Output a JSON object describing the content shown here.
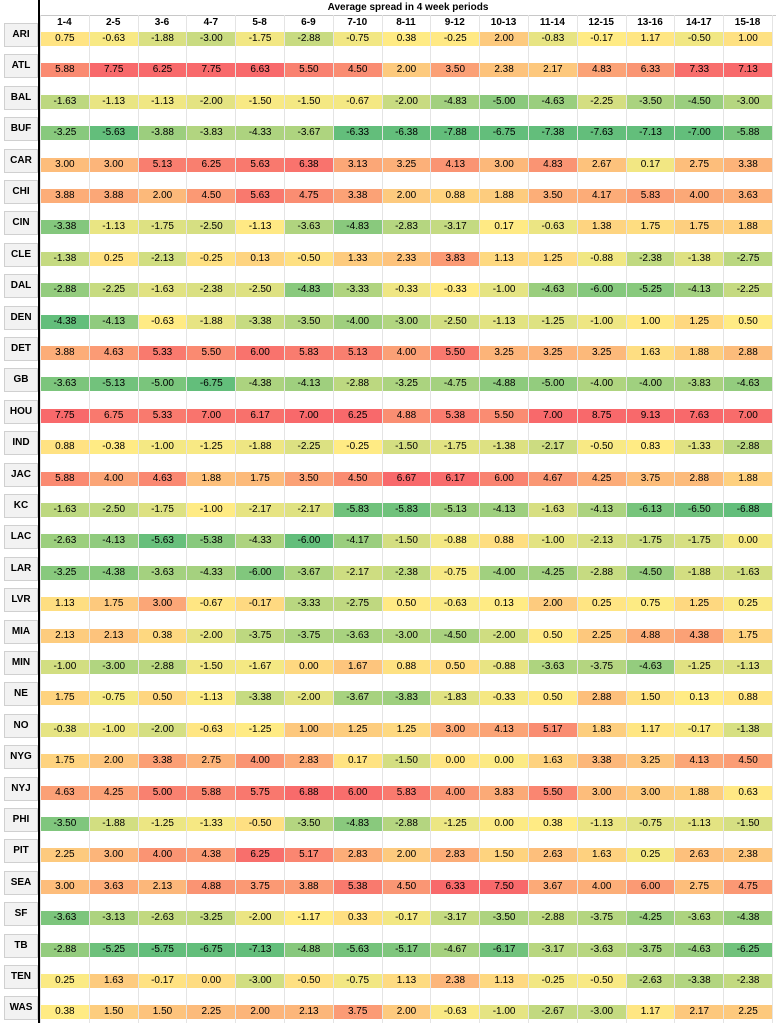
{
  "title": "Average spread in 4 week periods",
  "columns": [
    "1-4",
    "2-5",
    "3-6",
    "4-7",
    "5-8",
    "6-9",
    "7-10",
    "8-11",
    "9-12",
    "10-13",
    "11-14",
    "12-15",
    "13-16",
    "14-17",
    "15-18"
  ],
  "colors": {
    "green": "#63be7b",
    "yellow": "#ffeb84",
    "red": "#f8696b"
  },
  "rows": [
    {
      "team": "ARI",
      "values": [
        "0.75",
        "-0.63",
        "-1.88",
        "-3.00",
        "-1.75",
        "-2.88",
        "-0.75",
        "0.38",
        "-0.25",
        "2.00",
        "-0.83",
        "-0.17",
        "1.17",
        "-0.50",
        "1.00"
      ]
    },
    {
      "team": "ATL",
      "values": [
        "5.88",
        "7.75",
        "6.25",
        "7.75",
        "6.63",
        "5.50",
        "4.50",
        "2.00",
        "3.50",
        "2.38",
        "2.17",
        "4.83",
        "6.33",
        "7.33",
        "7.13"
      ]
    },
    {
      "team": "BAL",
      "values": [
        "-1.63",
        "-1.13",
        "-1.13",
        "-2.00",
        "-1.50",
        "-1.50",
        "-0.67",
        "-2.00",
        "-4.83",
        "-5.00",
        "-4.63",
        "-2.25",
        "-3.50",
        "-4.50",
        "-3.00"
      ]
    },
    {
      "team": "BUF",
      "values": [
        "-3.25",
        "-5.63",
        "-3.88",
        "-3.83",
        "-4.33",
        "-3.67",
        "-6.33",
        "-6.38",
        "-7.88",
        "-6.75",
        "-7.38",
        "-7.63",
        "-7.13",
        "-7.00",
        "-5.88"
      ]
    },
    {
      "team": "CAR",
      "values": [
        "3.00",
        "3.00",
        "5.13",
        "6.25",
        "5.63",
        "6.38",
        "3.13",
        "3.25",
        "4.13",
        "3.00",
        "4.83",
        "2.67",
        "0.17",
        "2.75",
        "3.38"
      ]
    },
    {
      "team": "CHI",
      "values": [
        "3.88",
        "3.88",
        "2.00",
        "4.50",
        "5.63",
        "4.75",
        "3.38",
        "2.00",
        "0.88",
        "1.88",
        "3.50",
        "4.17",
        "5.83",
        "4.00",
        "3.63"
      ]
    },
    {
      "team": "CIN",
      "values": [
        "-3.38",
        "-1.13",
        "-1.75",
        "-2.50",
        "-1.13",
        "-3.63",
        "-4.83",
        "-2.83",
        "-3.17",
        "0.17",
        "-0.63",
        "1.38",
        "1.75",
        "1.75",
        "1.88"
      ]
    },
    {
      "team": "CLE",
      "values": [
        "-1.38",
        "0.25",
        "-2.13",
        "-0.25",
        "0.13",
        "-0.50",
        "1.33",
        "2.33",
        "3.83",
        "1.13",
        "1.25",
        "-0.88",
        "-2.38",
        "-1.38",
        "-2.75"
      ]
    },
    {
      "team": "DAL",
      "values": [
        "-2.88",
        "-2.25",
        "-1.63",
        "-2.38",
        "-2.50",
        "-4.83",
        "-3.33",
        "-0.33",
        "-0.33",
        "-1.00",
        "-4.63",
        "-6.00",
        "-5.25",
        "-4.13",
        "-2.25"
      ]
    },
    {
      "team": "DEN",
      "values": [
        "-4.38",
        "-4.13",
        "-0.63",
        "-1.88",
        "-3.38",
        "-3.50",
        "-4.00",
        "-3.00",
        "-2.50",
        "-1.13",
        "-1.25",
        "-1.00",
        "1.00",
        "1.25",
        "0.50"
      ]
    },
    {
      "team": "DET",
      "values": [
        "3.88",
        "4.63",
        "5.33",
        "5.50",
        "6.00",
        "5.83",
        "5.13",
        "4.00",
        "5.50",
        "3.25",
        "3.25",
        "3.25",
        "1.63",
        "1.88",
        "2.88"
      ]
    },
    {
      "team": "GB",
      "values": [
        "-3.63",
        "-5.13",
        "-5.00",
        "-6.75",
        "-4.38",
        "-4.13",
        "-2.88",
        "-3.25",
        "-4.75",
        "-4.88",
        "-5.00",
        "-4.00",
        "-4.00",
        "-3.83",
        "-4.63"
      ]
    },
    {
      "team": "HOU",
      "values": [
        "7.75",
        "6.75",
        "5.33",
        "7.00",
        "6.17",
        "7.00",
        "6.25",
        "4.88",
        "5.38",
        "5.50",
        "7.00",
        "8.75",
        "9.13",
        "7.63",
        "7.00"
      ]
    },
    {
      "team": "IND",
      "values": [
        "0.88",
        "-0.38",
        "-1.00",
        "-1.25",
        "-1.88",
        "-2.25",
        "-0.25",
        "-1.50",
        "-1.75",
        "-1.38",
        "-2.17",
        "-0.50",
        "0.83",
        "-1.33",
        "-2.88"
      ]
    },
    {
      "team": "JAC",
      "values": [
        "5.88",
        "4.00",
        "4.63",
        "1.88",
        "1.75",
        "3.50",
        "4.50",
        "6.67",
        "6.17",
        "6.00",
        "4.67",
        "4.25",
        "3.75",
        "2.88",
        "1.88"
      ]
    },
    {
      "team": "KC",
      "values": [
        "-1.63",
        "-2.50",
        "-1.75",
        "-1.00",
        "-2.17",
        "-2.17",
        "-5.83",
        "-5.83",
        "-5.13",
        "-4.13",
        "-1.63",
        "-4.13",
        "-6.13",
        "-6.50",
        "-6.88"
      ]
    },
    {
      "team": "LAC",
      "values": [
        "-2.63",
        "-4.13",
        "-5.63",
        "-5.38",
        "-4.33",
        "-6.00",
        "-4.17",
        "-1.50",
        "-0.88",
        "0.88",
        "-1.00",
        "-2.13",
        "-1.75",
        "-1.75",
        "0.00"
      ]
    },
    {
      "team": "LAR",
      "values": [
        "-3.25",
        "-4.38",
        "-3.63",
        "-4.33",
        "-6.00",
        "-3.67",
        "-2.17",
        "-2.38",
        "-0.75",
        "-4.00",
        "-4.25",
        "-2.88",
        "-4.50",
        "-1.88",
        "-1.63"
      ]
    },
    {
      "team": "LVR",
      "values": [
        "1.13",
        "1.75",
        "3.00",
        "-0.67",
        "-0.17",
        "-3.33",
        "-2.75",
        "0.50",
        "-0.63",
        "0.13",
        "2.00",
        "0.25",
        "0.75",
        "1.25",
        "0.25"
      ]
    },
    {
      "team": "MIA",
      "values": [
        "2.13",
        "2.13",
        "0.38",
        "-2.00",
        "-3.75",
        "-3.75",
        "-3.63",
        "-3.00",
        "-4.50",
        "-2.00",
        "0.50",
        "2.25",
        "4.88",
        "4.38",
        "1.75"
      ]
    },
    {
      "team": "MIN",
      "values": [
        "-1.00",
        "-3.00",
        "-2.88",
        "-1.50",
        "-1.67",
        "0.00",
        "1.67",
        "0.88",
        "0.50",
        "-0.88",
        "-3.63",
        "-3.75",
        "-4.63",
        "-1.25",
        "-1.13"
      ]
    },
    {
      "team": "NE",
      "values": [
        "1.75",
        "-0.75",
        "0.50",
        "-1.13",
        "-3.38",
        "-2.00",
        "-3.67",
        "-3.83",
        "-1.83",
        "-0.33",
        "0.50",
        "2.88",
        "1.50",
        "0.13",
        "0.88"
      ]
    },
    {
      "team": "NO",
      "values": [
        "-0.38",
        "-1.00",
        "-2.00",
        "-0.63",
        "-1.25",
        "1.00",
        "1.25",
        "1.25",
        "3.00",
        "4.13",
        "5.17",
        "1.83",
        "1.17",
        "-0.17",
        "-1.38"
      ]
    },
    {
      "team": "NYG",
      "values": [
        "1.75",
        "2.00",
        "3.38",
        "2.75",
        "4.00",
        "2.83",
        "0.17",
        "-1.50",
        "0.00",
        "0.00",
        "1.63",
        "3.38",
        "3.25",
        "4.13",
        "4.50"
      ]
    },
    {
      "team": "NYJ",
      "values": [
        "4.63",
        "4.25",
        "5.00",
        "5.88",
        "5.75",
        "6.88",
        "6.00",
        "5.83",
        "4.00",
        "3.83",
        "5.50",
        "3.00",
        "3.00",
        "1.88",
        "0.63"
      ]
    },
    {
      "team": "PHI",
      "values": [
        "-3.50",
        "-1.88",
        "-1.25",
        "-1.33",
        "-0.50",
        "-3.50",
        "-4.83",
        "-2.88",
        "-1.25",
        "0.00",
        "0.38",
        "-1.13",
        "-0.75",
        "-1.13",
        "-1.50"
      ]
    },
    {
      "team": "PIT",
      "values": [
        "2.25",
        "3.00",
        "4.00",
        "4.38",
        "6.25",
        "5.17",
        "2.83",
        "2.00",
        "2.83",
        "1.50",
        "2.63",
        "1.63",
        "0.25",
        "2.63",
        "2.38"
      ]
    },
    {
      "team": "SEA",
      "values": [
        "3.00",
        "3.63",
        "2.13",
        "4.88",
        "3.75",
        "3.88",
        "5.38",
        "4.50",
        "6.33",
        "7.50",
        "3.67",
        "4.00",
        "6.00",
        "2.75",
        "4.75"
      ]
    },
    {
      "team": "SF",
      "values": [
        "-3.63",
        "-3.13",
        "-2.63",
        "-3.25",
        "-2.00",
        "-1.17",
        "0.33",
        "-0.17",
        "-3.17",
        "-3.50",
        "-2.88",
        "-3.75",
        "-4.25",
        "-3.63",
        "-4.38"
      ]
    },
    {
      "team": "TB",
      "values": [
        "-2.88",
        "-5.25",
        "-5.75",
        "-6.75",
        "-7.13",
        "-4.88",
        "-5.63",
        "-5.17",
        "-4.67",
        "-6.17",
        "-3.17",
        "-3.63",
        "-3.75",
        "-4.63",
        "-6.25"
      ]
    },
    {
      "team": "TEN",
      "values": [
        "0.25",
        "1.63",
        "-0.17",
        "0.00",
        "-3.00",
        "-0.50",
        "-0.75",
        "1.13",
        "2.38",
        "1.13",
        "-0.25",
        "-0.50",
        "-2.63",
        "-3.38",
        "-2.38"
      ]
    },
    {
      "team": "WAS",
      "values": [
        "0.38",
        "1.50",
        "1.50",
        "2.25",
        "2.00",
        "2.13",
        "3.75",
        "2.00",
        "-0.63",
        "-1.00",
        "-2.67",
        "-3.00",
        "1.17",
        "2.17",
        "2.25"
      ]
    }
  ]
}
